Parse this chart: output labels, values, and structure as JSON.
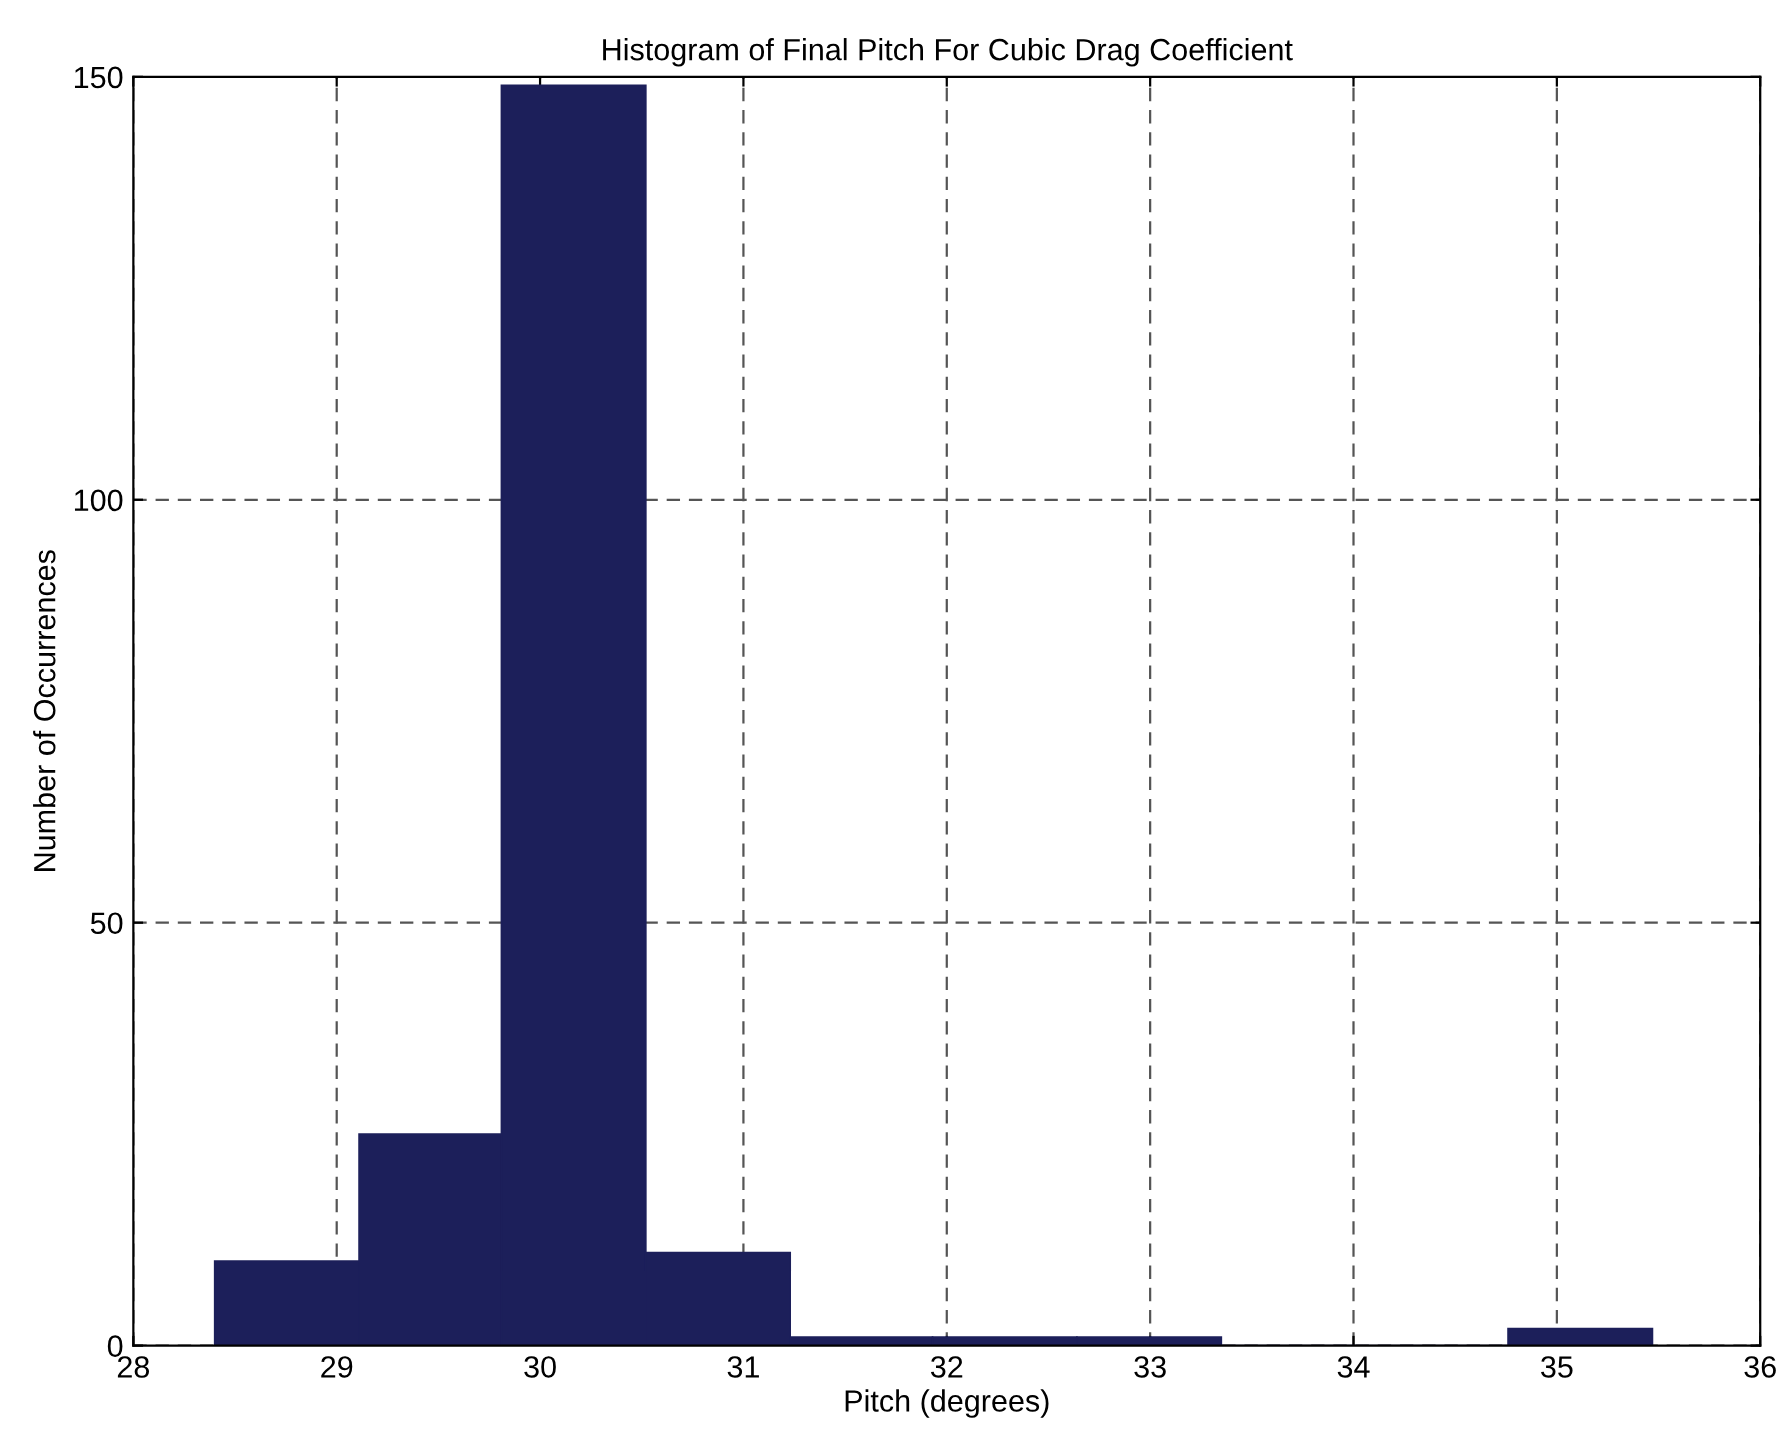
{
  "chart_data": {
    "type": "histogram",
    "title": "Histogram of Final Pitch For Cubic Drag Coefficient",
    "xlabel": "Pitch (degrees)",
    "ylabel": "Number of Occurrences",
    "bins": [
      28.4,
      29.11,
      29.81,
      30.52,
      31.23,
      31.93,
      32.64,
      33.35,
      34.05,
      34.76,
      35.47
    ],
    "values": [
      10,
      25,
      149,
      11,
      1,
      1,
      1,
      0,
      0,
      2
    ],
    "color": "#1c1f5a",
    "xlim": [
      28,
      36
    ],
    "xticks": [
      28,
      29,
      30,
      31,
      32,
      33,
      34,
      35,
      36
    ],
    "ylim": [
      0,
      150
    ],
    "yticks": [
      0,
      50,
      100,
      150
    ],
    "grid": true
  }
}
